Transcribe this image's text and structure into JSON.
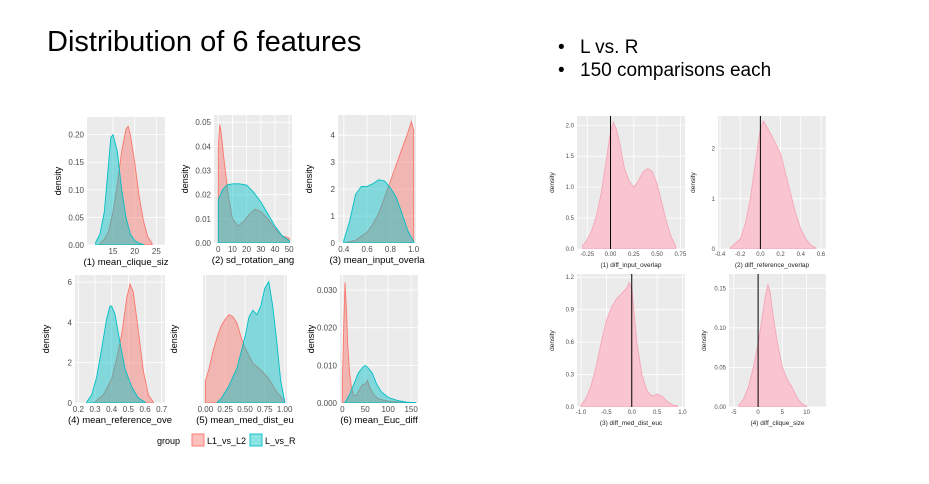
{
  "slide": {
    "title": "Distribution of 6 features",
    "bullets": [
      "L vs. R",
      "150 comparisons each"
    ]
  },
  "colors": {
    "panel_bg": "#ebebeb",
    "grid": "#ffffff",
    "L1_vs_L2": "#f8766d",
    "L_vs_R": "#00bfc4",
    "diff_fill": "#f9c5d0",
    "diff_line": "#f4a6b8",
    "zero_line": "#000000"
  },
  "legend": {
    "title": "group",
    "entries": [
      {
        "key": "L1_vs_L2",
        "label": "L1_vs_L2"
      },
      {
        "key": "L_vs_R",
        "label": "L_vs_R"
      }
    ]
  },
  "chart_data": [
    {
      "type": "area",
      "panel": "left",
      "xlabel": "(1) mean_clique_siz",
      "ylabel": "density",
      "xlim": [
        9,
        27
      ],
      "ylim": [
        0,
        0.232
      ],
      "xticks": [
        {
          "v": 15,
          "t": "15"
        },
        {
          "v": 20,
          "t": "20"
        },
        {
          "v": 25,
          "t": "25"
        }
      ],
      "yticks": [
        {
          "v": 0,
          "t": "0.00"
        },
        {
          "v": 0.05,
          "t": "0.05"
        },
        {
          "v": 0.1,
          "t": "0.10"
        },
        {
          "v": 0.15,
          "t": "0.15"
        },
        {
          "v": 0.2,
          "t": "0.20"
        }
      ],
      "series": [
        {
          "name": "L1_vs_L2",
          "x": [
            12,
            13,
            14,
            15,
            16,
            17,
            18,
            18.5,
            19,
            20,
            21,
            22,
            23,
            24
          ],
          "y": [
            0.003,
            0.01,
            0.025,
            0.06,
            0.11,
            0.17,
            0.21,
            0.215,
            0.2,
            0.15,
            0.09,
            0.045,
            0.015,
            0.003
          ]
        },
        {
          "name": "L_vs_R",
          "x": [
            11,
            12,
            13,
            14,
            14.5,
            15,
            16,
            17,
            18,
            19,
            20,
            21,
            22
          ],
          "y": [
            0.005,
            0.02,
            0.06,
            0.15,
            0.195,
            0.2,
            0.17,
            0.1,
            0.05,
            0.02,
            0.008,
            0.003,
            0.001
          ]
        }
      ]
    },
    {
      "type": "area",
      "panel": "left",
      "xlabel": "(2) sd_rotation_ang",
      "ylabel": "density",
      "xlim": [
        -3,
        52
      ],
      "ylim": [
        0,
        0.053
      ],
      "xticks": [
        {
          "v": 0,
          "t": "0"
        },
        {
          "v": 10,
          "t": "10"
        },
        {
          "v": 20,
          "t": "20"
        },
        {
          "v": 30,
          "t": "30"
        },
        {
          "v": 40,
          "t": "40"
        },
        {
          "v": 50,
          "t": "50"
        }
      ],
      "yticks": [
        {
          "v": 0,
          "t": "0.00"
        },
        {
          "v": 0.01,
          "t": "0.01"
        },
        {
          "v": 0.02,
          "t": "0.02"
        },
        {
          "v": 0.03,
          "t": "0.03"
        },
        {
          "v": 0.04,
          "t": "0.04"
        },
        {
          "v": 0.05,
          "t": "0.05"
        }
      ],
      "series": [
        {
          "name": "L1_vs_L2",
          "x": [
            0,
            1,
            2,
            4,
            7,
            10,
            14,
            18,
            22,
            26,
            30,
            35,
            40,
            45,
            50
          ],
          "y": [
            0.04,
            0.049,
            0.046,
            0.035,
            0.02,
            0.01,
            0.007,
            0.009,
            0.012,
            0.014,
            0.013,
            0.01,
            0.006,
            0.003,
            0.002
          ]
        },
        {
          "name": "L_vs_R",
          "x": [
            0,
            3,
            6,
            10,
            15,
            20,
            25,
            30,
            35,
            40,
            45,
            50
          ],
          "y": [
            0.018,
            0.022,
            0.024,
            0.0245,
            0.0245,
            0.024,
            0.021,
            0.017,
            0.012,
            0.007,
            0.003,
            0.001
          ]
        }
      ]
    },
    {
      "type": "area",
      "panel": "left",
      "xlabel": "(3) mean_input_overla",
      "ylabel": "density",
      "xlim": [
        0.35,
        1.02
      ],
      "ylim": [
        0,
        4.75
      ],
      "xticks": [
        {
          "v": 0.4,
          "t": "0.4"
        },
        {
          "v": 0.6,
          "t": "0.6"
        },
        {
          "v": 0.8,
          "t": "0.8"
        },
        {
          "v": 1.0,
          "t": "1.0"
        }
      ],
      "yticks": [
        {
          "v": 0,
          "t": "0"
        },
        {
          "v": 1,
          "t": "1"
        },
        {
          "v": 2,
          "t": "2"
        },
        {
          "v": 3,
          "t": "3"
        },
        {
          "v": 4,
          "t": "4"
        }
      ],
      "series": [
        {
          "name": "L1_vs_L2",
          "x": [
            0.42,
            0.5,
            0.55,
            0.6,
            0.65,
            0.7,
            0.75,
            0.8,
            0.85,
            0.9,
            0.95,
            0.98,
            1.0
          ],
          "y": [
            0.02,
            0.1,
            0.25,
            0.4,
            0.7,
            1.1,
            1.7,
            2.3,
            2.9,
            3.5,
            4.1,
            4.5,
            4.2
          ]
        },
        {
          "name": "L_vs_R",
          "x": [
            0.4,
            0.45,
            0.5,
            0.55,
            0.6,
            0.65,
            0.7,
            0.75,
            0.8,
            0.85,
            0.9,
            0.95,
            1.0
          ],
          "y": [
            0.1,
            0.8,
            1.8,
            2.1,
            2.1,
            2.2,
            2.35,
            2.3,
            2.05,
            1.7,
            1.1,
            0.45,
            0.05
          ]
        }
      ]
    },
    {
      "type": "area",
      "panel": "left",
      "xlabel": "(4) mean_reference_ove",
      "ylabel": "density",
      "xlim": [
        0.18,
        0.72
      ],
      "ylim": [
        0,
        6.35
      ],
      "xticks": [
        {
          "v": 0.2,
          "t": "0.2"
        },
        {
          "v": 0.3,
          "t": "0.3"
        },
        {
          "v": 0.4,
          "t": "0.4"
        },
        {
          "v": 0.5,
          "t": "0.5"
        },
        {
          "v": 0.6,
          "t": "0.6"
        },
        {
          "v": 0.7,
          "t": "0.7"
        }
      ],
      "yticks": [
        {
          "v": 0,
          "t": "0"
        },
        {
          "v": 2,
          "t": "2"
        },
        {
          "v": 4,
          "t": "4"
        },
        {
          "v": 6,
          "t": "6"
        }
      ],
      "series": [
        {
          "name": "L1_vs_L2",
          "x": [
            0.3,
            0.35,
            0.4,
            0.43,
            0.46,
            0.49,
            0.51,
            0.53,
            0.56,
            0.59,
            0.62,
            0.65
          ],
          "y": [
            0.05,
            0.4,
            1.2,
            2.2,
            3.4,
            5.2,
            5.9,
            5.5,
            3.6,
            1.6,
            0.4,
            0.05
          ]
        },
        {
          "name": "L_vs_R",
          "x": [
            0.25,
            0.28,
            0.31,
            0.34,
            0.37,
            0.39,
            0.4,
            0.42,
            0.45,
            0.48,
            0.52,
            0.56,
            0.6
          ],
          "y": [
            0.05,
            0.4,
            1.3,
            2.7,
            4.2,
            4.8,
            4.8,
            4.4,
            3.0,
            1.7,
            0.8,
            0.25,
            0.05
          ]
        }
      ]
    },
    {
      "type": "area",
      "panel": "left",
      "xlabel": "(5) mean_med_dist_eu",
      "ylabel": "density",
      "xlim": [
        -0.03,
        1.03
      ],
      "ylim": [
        0,
        2.9
      ],
      "xticks": [
        {
          "v": 0,
          "t": "0.00"
        },
        {
          "v": 0.25,
          "t": "0.25"
        },
        {
          "v": 0.5,
          "t": "0.50"
        },
        {
          "v": 0.75,
          "t": "0.75"
        },
        {
          "v": 1.0,
          "t": "1.00"
        }
      ],
      "yticks": [],
      "series": [
        {
          "name": "L1_vs_L2",
          "x": [
            0.0,
            0.05,
            0.1,
            0.15,
            0.2,
            0.25,
            0.3,
            0.35,
            0.4,
            0.45,
            0.5,
            0.6,
            0.7,
            0.8,
            0.9,
            1.0
          ],
          "y": [
            0.5,
            0.8,
            1.2,
            1.5,
            1.75,
            1.9,
            2.0,
            1.95,
            1.8,
            1.5,
            1.25,
            0.9,
            0.75,
            0.55,
            0.25,
            0.05
          ]
        },
        {
          "name": "L_vs_R",
          "x": [
            0.15,
            0.2,
            0.3,
            0.4,
            0.5,
            0.55,
            0.6,
            0.65,
            0.7,
            0.75,
            0.8,
            0.85,
            0.9,
            0.95,
            1.0
          ],
          "y": [
            0.02,
            0.1,
            0.4,
            0.8,
            1.5,
            1.95,
            2.1,
            2.0,
            2.2,
            2.6,
            2.75,
            2.2,
            1.4,
            0.5,
            0.05
          ]
        }
      ]
    },
    {
      "type": "area",
      "panel": "left",
      "xlabel": "(6) mean_Euc_diff",
      "ylabel": "density",
      "xlim": [
        -5,
        165
      ],
      "ylim": [
        0,
        0.034
      ],
      "xticks": [
        {
          "v": 0,
          "t": "0"
        },
        {
          "v": 50,
          "t": "50"
        },
        {
          "v": 100,
          "t": "100"
        },
        {
          "v": 150,
          "t": "150"
        }
      ],
      "yticks": [
        {
          "v": 0,
          "t": "0.000"
        },
        {
          "v": 0.01,
          "t": "0.010"
        },
        {
          "v": 0.02,
          "t": "0.020"
        },
        {
          "v": 0.03,
          "t": "0.030"
        }
      ],
      "series": [
        {
          "name": "L1_vs_L2",
          "x": [
            0,
            3,
            6,
            9,
            12,
            16,
            20,
            25,
            30,
            35,
            40,
            45,
            50,
            55,
            60,
            70,
            80,
            100,
            130,
            160
          ],
          "y": [
            0.005,
            0.02,
            0.032,
            0.025,
            0.015,
            0.008,
            0.004,
            0.002,
            0.002,
            0.003,
            0.004,
            0.005,
            0.005,
            0.006,
            0.004,
            0.002,
            0.001,
            0.0005,
            0.0002,
            0.0001
          ]
        },
        {
          "name": "L_vs_R",
          "x": [
            5,
            15,
            25,
            35,
            45,
            50,
            55,
            65,
            75,
            85,
            100,
            120,
            140,
            160
          ],
          "y": [
            0.0,
            0.002,
            0.005,
            0.008,
            0.0095,
            0.01,
            0.0095,
            0.008,
            0.005,
            0.003,
            0.0015,
            0.0007,
            0.0002,
            0.0001
          ]
        }
      ]
    },
    {
      "type": "area",
      "panel": "right",
      "xlabel": "(1) diff_input_overlap",
      "ylabel": "density",
      "xlim": [
        -0.36,
        0.8
      ],
      "ylim": [
        0,
        2.15
      ],
      "vline": 0,
      "xticks": [
        {
          "v": -0.25,
          "t": "-0.25"
        },
        {
          "v": 0,
          "t": "0.00"
        },
        {
          "v": 0.25,
          "t": "0.25"
        },
        {
          "v": 0.5,
          "t": "0.50"
        },
        {
          "v": 0.75,
          "t": "0.75"
        }
      ],
      "yticks": [
        {
          "v": 0,
          "t": "0.0"
        },
        {
          "v": 0.5,
          "t": "0.5"
        },
        {
          "v": 1,
          "t": "1.0"
        },
        {
          "v": 1.5,
          "t": "1.5"
        },
        {
          "v": 2,
          "t": "2.0"
        }
      ],
      "series": [
        {
          "name": "",
          "x": [
            -0.3,
            -0.25,
            -0.2,
            -0.15,
            -0.1,
            -0.05,
            0.0,
            0.03,
            0.06,
            0.1,
            0.15,
            0.2,
            0.25,
            0.3,
            0.35,
            0.4,
            0.45,
            0.5,
            0.55,
            0.6,
            0.65,
            0.7
          ],
          "y": [
            0.05,
            0.15,
            0.3,
            0.55,
            0.9,
            1.4,
            1.9,
            2.05,
            1.95,
            1.7,
            1.3,
            1.1,
            1.0,
            1.1,
            1.25,
            1.3,
            1.25,
            1.05,
            0.75,
            0.45,
            0.2,
            0.05
          ]
        }
      ]
    },
    {
      "type": "area",
      "panel": "right",
      "xlabel": "(2) diff_reference_overlap",
      "ylabel": "density",
      "xlim": [
        -0.42,
        0.65
      ],
      "ylim": [
        0,
        2.65
      ],
      "vline": 0,
      "xticks": [
        {
          "v": -0.4,
          "t": "-0.4"
        },
        {
          "v": -0.2,
          "t": "-0.2"
        },
        {
          "v": 0,
          "t": "0.0"
        },
        {
          "v": 0.2,
          "t": "0.2"
        },
        {
          "v": 0.4,
          "t": "0.4"
        },
        {
          "v": 0.6,
          "t": "0.6"
        }
      ],
      "yticks": [
        {
          "v": 0,
          "t": "0"
        },
        {
          "v": 1,
          "t": "1"
        },
        {
          "v": 2,
          "t": "2"
        }
      ],
      "series": [
        {
          "name": "",
          "x": [
            -0.3,
            -0.2,
            -0.15,
            -0.1,
            -0.05,
            0.0,
            0.03,
            0.06,
            0.1,
            0.15,
            0.2,
            0.25,
            0.3,
            0.35,
            0.4,
            0.45,
            0.5,
            0.55
          ],
          "y": [
            0.02,
            0.2,
            0.5,
            1.0,
            1.7,
            2.4,
            2.55,
            2.45,
            2.3,
            2.1,
            1.9,
            1.5,
            1.1,
            0.7,
            0.4,
            0.2,
            0.08,
            0.02
          ]
        }
      ]
    },
    {
      "type": "area",
      "panel": "right",
      "xlabel": "(3) diff_med_dist_euc",
      "ylabel": "density",
      "xlim": [
        -1.08,
        1.05
      ],
      "ylim": [
        0,
        1.23
      ],
      "vline": 0,
      "xticks": [
        {
          "v": -1,
          "t": "-1.0"
        },
        {
          "v": -0.5,
          "t": "-0.5"
        },
        {
          "v": 0,
          "t": "0.0"
        },
        {
          "v": 0.5,
          "t": "0.5"
        },
        {
          "v": 1,
          "t": "1.0"
        }
      ],
      "yticks": [
        {
          "v": 0,
          "t": "0.0"
        },
        {
          "v": 0.3,
          "t": "0.3"
        },
        {
          "v": 0.6,
          "t": "0.6"
        },
        {
          "v": 0.9,
          "t": "0.9"
        },
        {
          "v": 1.2,
          "t": "1.2"
        }
      ],
      "series": [
        {
          "name": "",
          "x": [
            -1.0,
            -0.9,
            -0.8,
            -0.7,
            -0.6,
            -0.5,
            -0.4,
            -0.3,
            -0.2,
            -0.1,
            -0.05,
            0.0,
            0.1,
            0.2,
            0.3,
            0.4,
            0.5,
            0.6,
            0.7,
            0.8,
            0.9
          ],
          "y": [
            0.02,
            0.08,
            0.2,
            0.38,
            0.6,
            0.8,
            0.92,
            1.0,
            1.05,
            1.1,
            1.15,
            1.1,
            0.6,
            0.3,
            0.15,
            0.1,
            0.12,
            0.1,
            0.05,
            0.02,
            0.01
          ]
        }
      ]
    },
    {
      "type": "area",
      "panel": "right",
      "xlabel": "(4) diff_clique_size",
      "ylabel": "density",
      "xlim": [
        -6,
        14
      ],
      "ylim": [
        0,
        0.168
      ],
      "vline": 0,
      "xticks": [
        {
          "v": -5,
          "t": "-5"
        },
        {
          "v": 0,
          "t": "0"
        },
        {
          "v": 5,
          "t": "5"
        },
        {
          "v": 10,
          "t": "10"
        }
      ],
      "yticks": [
        {
          "v": 0,
          "t": "0.00"
        },
        {
          "v": 0.05,
          "t": "0.05"
        },
        {
          "v": 0.1,
          "t": "0.10"
        },
        {
          "v": 0.15,
          "t": "0.15"
        }
      ],
      "series": [
        {
          "name": "",
          "x": [
            -4,
            -3,
            -2,
            -1,
            0,
            1,
            1.5,
            2,
            2.5,
            3,
            4,
            5,
            6,
            7,
            8,
            9,
            10
          ],
          "y": [
            0.002,
            0.01,
            0.025,
            0.05,
            0.08,
            0.12,
            0.14,
            0.155,
            0.145,
            0.12,
            0.08,
            0.05,
            0.035,
            0.025,
            0.012,
            0.004,
            0.001
          ]
        }
      ]
    }
  ]
}
